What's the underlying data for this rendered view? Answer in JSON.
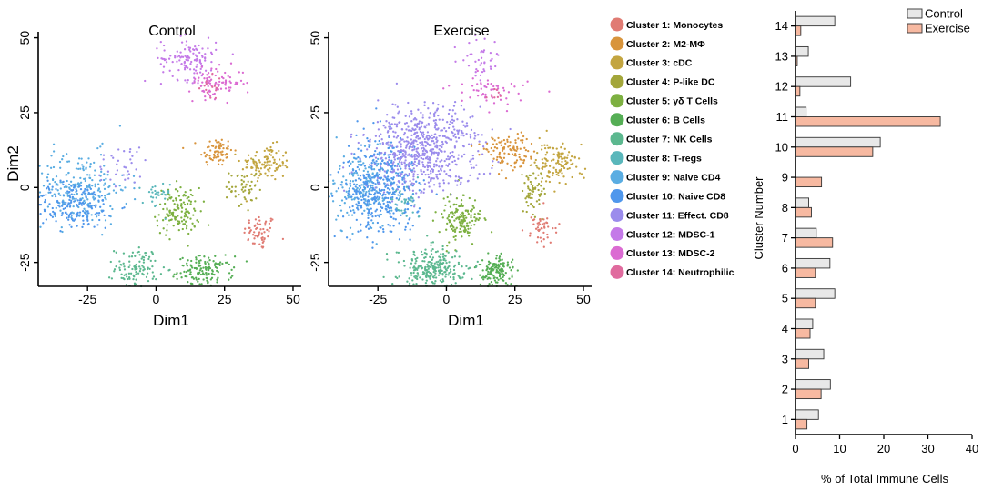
{
  "chart_data": [
    {
      "type": "scatter",
      "title": "Control",
      "xlabel": "Dim1",
      "ylabel": "Dim2",
      "xlim": [
        -43,
        53
      ],
      "ylim": [
        -33,
        52
      ],
      "xticks": [
        -25,
        0,
        25,
        50
      ],
      "yticks": [
        -25,
        0,
        25,
        50
      ],
      "tick_labels_x": [
        "-25",
        "0",
        "25",
        "50"
      ],
      "tick_labels_y": [
        "-25",
        "0",
        "25",
        "50"
      ],
      "series": [
        {
          "name": "Cluster 1: Monocytes",
          "cx": 38,
          "cy": -15,
          "sx": 3,
          "sy": 3,
          "n": 60
        },
        {
          "name": "Cluster 2: M2-MΦ",
          "cx": 22,
          "cy": 12,
          "sx": 3,
          "sy": 2.5,
          "n": 70
        },
        {
          "name": "Cluster 3: cDC",
          "cx": 40,
          "cy": 8,
          "sx": 4.5,
          "sy": 3,
          "n": 110
        },
        {
          "name": "Cluster 4: P-like DC",
          "cx": 32,
          "cy": 0,
          "sx": 2.5,
          "sy": 4,
          "n": 50
        },
        {
          "name": "Cluster 5: γδ T Cells",
          "cx": 8,
          "cy": -8,
          "sx": 4,
          "sy": 4,
          "n": 130
        },
        {
          "name": "Cluster 6: B Cells",
          "cx": 18,
          "cy": -28,
          "sx": 5,
          "sy": 2.5,
          "n": 140
        },
        {
          "name": "Cluster 7: NK Cells",
          "cx": -7,
          "cy": -27,
          "sx": 4,
          "sy": 3.5,
          "n": 110
        },
        {
          "name": "Cluster 8: T-regs",
          "cx": 0,
          "cy": -3,
          "sx": 2.5,
          "sy": 2.5,
          "n": 30
        },
        {
          "name": "Cluster 9: Naive CD4",
          "cx": -28,
          "cy": 0,
          "sx": 9,
          "sy": 6,
          "n": 220
        },
        {
          "name": "Cluster 10: Naive CD8",
          "cx": -30,
          "cy": -6,
          "sx": 8,
          "sy": 4,
          "n": 200
        },
        {
          "name": "Cluster 11: Effect. CD8",
          "cx": -12,
          "cy": 8,
          "sx": 5,
          "sy": 4,
          "n": 35
        },
        {
          "name": "Cluster 12: MDSC-1",
          "cx": 12,
          "cy": 43,
          "sx": 5,
          "sy": 3.5,
          "n": 120
        },
        {
          "name": "Cluster 13: MDSC-2",
          "cx": 22,
          "cy": 35,
          "sx": 5,
          "sy": 2.5,
          "n": 90
        },
        {
          "name": "Cluster 14: Neutrophilic",
          "cx": 20,
          "cy": 33,
          "sx": 3,
          "sy": 2,
          "n": 15
        }
      ]
    },
    {
      "type": "scatter",
      "title": "Exercise",
      "xlabel": "Dim1",
      "ylabel": "",
      "xlim": [
        -43,
        53
      ],
      "ylim": [
        -33,
        52
      ],
      "xticks": [
        -25,
        0,
        25,
        50
      ],
      "yticks": [
        -25,
        0,
        25,
        50
      ],
      "tick_labels_x": [
        "-25",
        "0",
        "25",
        "50"
      ],
      "tick_labels_y": [
        "-25",
        "0",
        "25",
        "50"
      ],
      "series": [
        {
          "name": "Cluster 1: Monocytes",
          "cx": 35,
          "cy": -14,
          "sx": 3,
          "sy": 2.5,
          "n": 45
        },
        {
          "name": "Cluster 2: M2-MΦ",
          "cx": 22,
          "cy": 12,
          "sx": 4,
          "sy": 3,
          "n": 110
        },
        {
          "name": "Cluster 3: cDC",
          "cx": 40,
          "cy": 8,
          "sx": 4.5,
          "sy": 3.5,
          "n": 120
        },
        {
          "name": "Cluster 4: P-like DC",
          "cx": 31,
          "cy": -2,
          "sx": 2.5,
          "sy": 4,
          "n": 60
        },
        {
          "name": "Cluster 5: γδ T Cells",
          "cx": 5,
          "cy": -10,
          "sx": 4,
          "sy": 4,
          "n": 150
        },
        {
          "name": "Cluster 6: B Cells",
          "cx": 18,
          "cy": -28,
          "sx": 3.5,
          "sy": 2.5,
          "n": 140
        },
        {
          "name": "Cluster 7: NK Cells",
          "cx": -5,
          "cy": -27,
          "sx": 6,
          "sy": 3.5,
          "n": 260
        },
        {
          "name": "Cluster 8: T-regs",
          "cx": -15,
          "cy": -5,
          "sx": 3,
          "sy": 3,
          "n": 40
        },
        {
          "name": "Cluster 9: Naive CD4",
          "cx": -30,
          "cy": 0,
          "sx": 6,
          "sy": 6,
          "n": 200
        },
        {
          "name": "Cluster 10: Naive CD8",
          "cx": -24,
          "cy": 0,
          "sx": 7,
          "sy": 8,
          "n": 420
        },
        {
          "name": "Cluster 11: Effect. CD8",
          "cx": -8,
          "cy": 13,
          "sx": 10,
          "sy": 7,
          "n": 640
        },
        {
          "name": "Cluster 12: MDSC-1",
          "cx": 12,
          "cy": 42,
          "sx": 3.5,
          "sy": 4,
          "n": 40
        },
        {
          "name": "Cluster 13: MDSC-2",
          "cx": 16,
          "cy": 33,
          "sx": 7,
          "sy": 2.5,
          "n": 55
        },
        {
          "name": "Cluster 14: Neutrophilic",
          "cx": 19,
          "cy": 32,
          "sx": 2,
          "sy": 2,
          "n": 8
        }
      ]
    },
    {
      "type": "bar",
      "orientation": "horizontal",
      "title": "",
      "xlabel": "% of Total Immune Cells",
      "ylabel": "Cluster Number",
      "xlim": [
        0,
        40
      ],
      "xticks": [
        0,
        10,
        20,
        30,
        40
      ],
      "tick_labels_x": [
        "0",
        "10",
        "20",
        "30",
        "40"
      ],
      "categories": [
        "1",
        "2",
        "3",
        "4",
        "5",
        "6",
        "7",
        "8",
        "9",
        "10",
        "11",
        "12",
        "13",
        "14"
      ],
      "series": [
        {
          "name": "Control",
          "values": [
            5.2,
            7.9,
            6.4,
            3.9,
            8.9,
            7.8,
            4.7,
            3.0,
            0.0,
            19.2,
            2.4,
            12.5,
            2.9,
            8.9
          ]
        },
        {
          "name": "Exercise",
          "values": [
            2.6,
            5.8,
            3.0,
            3.3,
            4.5,
            4.5,
            8.4,
            3.6,
            5.9,
            17.5,
            32.8,
            1.0,
            0.4,
            1.2
          ]
        }
      ],
      "legend": "top-right"
    }
  ],
  "legend": {
    "items": [
      {
        "label": "Cluster 1: Monocytes",
        "color": "#E07B73"
      },
      {
        "label": "Cluster 2: M2-MΦ",
        "color": "#D8943C"
      },
      {
        "label": "Cluster 3: cDC",
        "color": "#C3A540"
      },
      {
        "label": "Cluster 4: P-like DC",
        "color": "#A3A63A"
      },
      {
        "label": "Cluster 5: γδ T Cells",
        "color": "#7DB041"
      },
      {
        "label": "Cluster 6: B Cells",
        "color": "#55AE55"
      },
      {
        "label": "Cluster 7: NK Cells",
        "color": "#5CB88F"
      },
      {
        "label": "Cluster 8: T-regs",
        "color": "#5AB7BB"
      },
      {
        "label": "Cluster 9: Naive CD4",
        "color": "#5AADE2"
      },
      {
        "label": "Cluster 10: Naive CD8",
        "color": "#4F97EC"
      },
      {
        "label": "Cluster 11: Effect. CD8",
        "color": "#9B8CEC"
      },
      {
        "label": "Cluster 12: MDSC-1",
        "color": "#C47AE8"
      },
      {
        "label": "Cluster 13: MDSC-2",
        "color": "#DB6BD2"
      },
      {
        "label": "Cluster 14: Neutrophilic",
        "color": "#E06B9E"
      }
    ]
  },
  "bar_colors": {
    "Control": "#E8E8E8",
    "Exercise": "#F7B9A1",
    "stroke": "#333333"
  }
}
